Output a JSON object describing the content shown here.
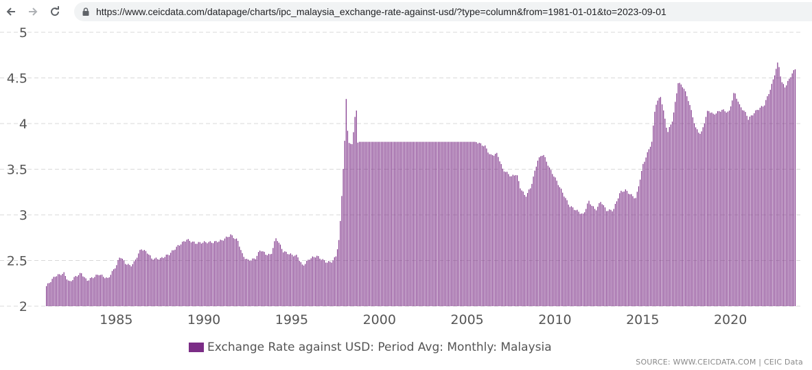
{
  "browser": {
    "url": "https://www.ceicdata.com/datapage/charts/ipc_malaysia_exchange-rate-against-usd/?type=column&from=1981-01-01&to=2023-09-01",
    "back_icon": "arrow-left-icon",
    "forward_icon": "arrow-right-icon",
    "reload_icon": "reload-icon",
    "lock_icon": "lock-icon"
  },
  "chart_data": {
    "type": "bar",
    "title": "",
    "series_name": "Exchange Rate against USD: Period Avg: Monthly: Malaysia",
    "color": "#7b2d86",
    "xlabel": "",
    "ylabel": "",
    "ylim": [
      2,
      5
    ],
    "yticks": [
      "2",
      "2.5",
      "3",
      "3.5",
      "4",
      "4.5",
      "5"
    ],
    "xlim": [
      1981.0,
      2023.75
    ],
    "xticks": [
      "1985",
      "1990",
      "1995",
      "2000",
      "2005",
      "2010",
      "2015",
      "2020"
    ],
    "grid": "horizontal dashed",
    "legend_position": "bottom-center",
    "date_range": {
      "start": "1981-01",
      "end": "2023-09",
      "frequency": "monthly"
    },
    "anchors": [
      [
        1981.0,
        2.22
      ],
      [
        1981.5,
        2.33
      ],
      [
        1982.0,
        2.36
      ],
      [
        1982.3,
        2.26
      ],
      [
        1982.7,
        2.33
      ],
      [
        1983.0,
        2.36
      ],
      [
        1983.3,
        2.28
      ],
      [
        1983.8,
        2.33
      ],
      [
        1984.0,
        2.35
      ],
      [
        1984.5,
        2.3
      ],
      [
        1985.0,
        2.45
      ],
      [
        1985.2,
        2.55
      ],
      [
        1985.5,
        2.47
      ],
      [
        1985.8,
        2.44
      ],
      [
        1986.0,
        2.48
      ],
      [
        1986.4,
        2.63
      ],
      [
        1986.8,
        2.58
      ],
      [
        1987.0,
        2.52
      ],
      [
        1987.5,
        2.52
      ],
      [
        1988.0,
        2.57
      ],
      [
        1988.5,
        2.66
      ],
      [
        1989.0,
        2.73
      ],
      [
        1989.5,
        2.69
      ],
      [
        1990.0,
        2.7
      ],
      [
        1990.5,
        2.7
      ],
      [
        1991.0,
        2.72
      ],
      [
        1991.5,
        2.78
      ],
      [
        1991.9,
        2.72
      ],
      [
        1992.2,
        2.55
      ],
      [
        1992.5,
        2.5
      ],
      [
        1992.9,
        2.52
      ],
      [
        1993.2,
        2.62
      ],
      [
        1993.5,
        2.57
      ],
      [
        1993.8,
        2.56
      ],
      [
        1994.0,
        2.7
      ],
      [
        1994.1,
        2.75
      ],
      [
        1994.5,
        2.6
      ],
      [
        1995.0,
        2.56
      ],
      [
        1995.3,
        2.55
      ],
      [
        1995.6,
        2.44
      ],
      [
        1996.0,
        2.52
      ],
      [
        1996.4,
        2.55
      ],
      [
        1996.8,
        2.5
      ],
      [
        1997.0,
        2.48
      ],
      [
        1997.3,
        2.49
      ],
      [
        1997.5,
        2.55
      ],
      [
        1997.7,
        2.75
      ],
      [
        1997.8,
        3.1
      ],
      [
        1998.0,
        3.8
      ],
      [
        1998.05,
        4.4
      ],
      [
        1998.2,
        3.8
      ],
      [
        1998.4,
        3.75
      ],
      [
        1998.55,
        4.0
      ],
      [
        1998.65,
        4.2
      ],
      [
        1998.75,
        3.8
      ],
      [
        2005.5,
        3.8
      ],
      [
        2006.0,
        3.75
      ],
      [
        2006.3,
        3.65
      ],
      [
        2006.7,
        3.67
      ],
      [
        2007.0,
        3.5
      ],
      [
        2007.5,
        3.42
      ],
      [
        2007.8,
        3.45
      ],
      [
        2008.0,
        3.3
      ],
      [
        2008.3,
        3.2
      ],
      [
        2008.6,
        3.3
      ],
      [
        2009.0,
        3.6
      ],
      [
        2009.3,
        3.67
      ],
      [
        2009.7,
        3.5
      ],
      [
        2010.0,
        3.4
      ],
      [
        2010.4,
        3.25
      ],
      [
        2010.8,
        3.1
      ],
      [
        2011.2,
        3.05
      ],
      [
        2011.6,
        3.0
      ],
      [
        2011.9,
        3.15
      ],
      [
        2012.3,
        3.05
      ],
      [
        2012.6,
        3.15
      ],
      [
        2012.9,
        3.05
      ],
      [
        2013.3,
        3.05
      ],
      [
        2013.7,
        3.25
      ],
      [
        2014.0,
        3.27
      ],
      [
        2014.3,
        3.22
      ],
      [
        2014.6,
        3.18
      ],
      [
        2015.0,
        3.55
      ],
      [
        2015.3,
        3.7
      ],
      [
        2015.5,
        3.8
      ],
      [
        2015.7,
        4.2
      ],
      [
        2016.0,
        4.3
      ],
      [
        2016.4,
        3.9
      ],
      [
        2016.7,
        4.05
      ],
      [
        2017.0,
        4.45
      ],
      [
        2017.3,
        4.4
      ],
      [
        2017.6,
        4.25
      ],
      [
        2018.0,
        3.95
      ],
      [
        2018.3,
        3.88
      ],
      [
        2018.7,
        4.15
      ],
      [
        2019.0,
        4.1
      ],
      [
        2019.5,
        4.15
      ],
      [
        2019.9,
        4.12
      ],
      [
        2020.2,
        4.35
      ],
      [
        2020.5,
        4.2
      ],
      [
        2020.9,
        4.1
      ],
      [
        2021.0,
        4.05
      ],
      [
        2021.5,
        4.15
      ],
      [
        2021.9,
        4.2
      ],
      [
        2022.3,
        4.4
      ],
      [
        2022.7,
        4.68
      ],
      [
        2022.9,
        4.45
      ],
      [
        2023.1,
        4.4
      ],
      [
        2023.5,
        4.55
      ],
      [
        2023.75,
        4.62
      ]
    ]
  },
  "legend": {
    "label": "Exchange Rate against USD: Period Avg: Monthly: Malaysia",
    "color": "#7b2d86"
  },
  "source": "SOURCE: WWW.CEICDATA.COM | CEIC Data"
}
